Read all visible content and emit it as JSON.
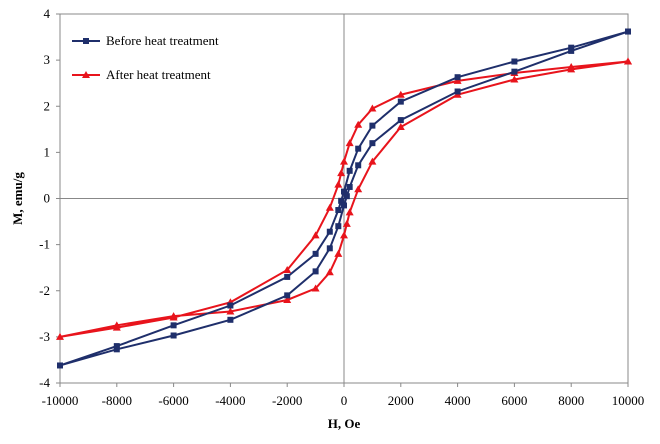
{
  "chart_data": {
    "type": "scatter",
    "title": "",
    "xlabel": "H, Oe",
    "ylabel": "M, emu/g",
    "xlim": [
      -10000,
      10000
    ],
    "ylim": [
      -4,
      4
    ],
    "xticks": [
      "-10000",
      "-8000",
      "-6000",
      "-4000",
      "-2000",
      "0",
      "2000",
      "4000",
      "6000",
      "8000",
      "10000"
    ],
    "yticks": [
      "-4",
      "-3",
      "-2",
      "-1",
      "0",
      "1",
      "2",
      "3",
      "4"
    ],
    "grid": false,
    "legend_position": "top-left",
    "series": [
      {
        "name": "Before heat treatment",
        "color": "#1f2f6b",
        "marker": "square",
        "x": [
          10000,
          8000,
          6000,
          4000,
          2000,
          1000,
          500,
          200,
          0,
          -100,
          -200,
          -500,
          -1000,
          -2000,
          -4000,
          -6000,
          -8000,
          -10000,
          -8000,
          -6000,
          -4000,
          -2000,
          -1000,
          -500,
          -200,
          0,
          100,
          200,
          500,
          1000,
          2000,
          4000,
          6000,
          8000,
          10000
        ],
        "y": [
          3.62,
          3.27,
          2.97,
          2.63,
          2.1,
          1.58,
          1.08,
          0.6,
          0.15,
          -0.05,
          -0.25,
          -0.72,
          -1.2,
          -1.7,
          -2.32,
          -2.75,
          -3.2,
          -3.62,
          -3.27,
          -2.97,
          -2.63,
          -2.1,
          -1.58,
          -1.08,
          -0.6,
          -0.15,
          0.05,
          0.25,
          0.72,
          1.2,
          1.7,
          2.32,
          2.75,
          3.2,
          3.62
        ]
      },
      {
        "name": "After heat treatment",
        "color": "#e8141c",
        "marker": "triangle",
        "x": [
          10000,
          8000,
          6000,
          4000,
          2000,
          1000,
          500,
          200,
          0,
          -100,
          -200,
          -500,
          -1000,
          -2000,
          -4000,
          -6000,
          -8000,
          -10000,
          -8000,
          -6000,
          -4000,
          -2000,
          -1000,
          -500,
          -200,
          0,
          100,
          200,
          500,
          1000,
          2000,
          4000,
          6000,
          8000,
          10000
        ],
        "y": [
          2.97,
          2.85,
          2.72,
          2.55,
          2.25,
          1.95,
          1.6,
          1.2,
          0.8,
          0.55,
          0.3,
          -0.2,
          -0.8,
          -1.55,
          -2.25,
          -2.58,
          -2.8,
          -3.0,
          -2.75,
          -2.55,
          -2.45,
          -2.2,
          -1.95,
          -1.6,
          -1.2,
          -0.8,
          -0.55,
          -0.3,
          0.2,
          0.8,
          1.55,
          2.25,
          2.58,
          2.8,
          2.97
        ]
      }
    ]
  }
}
